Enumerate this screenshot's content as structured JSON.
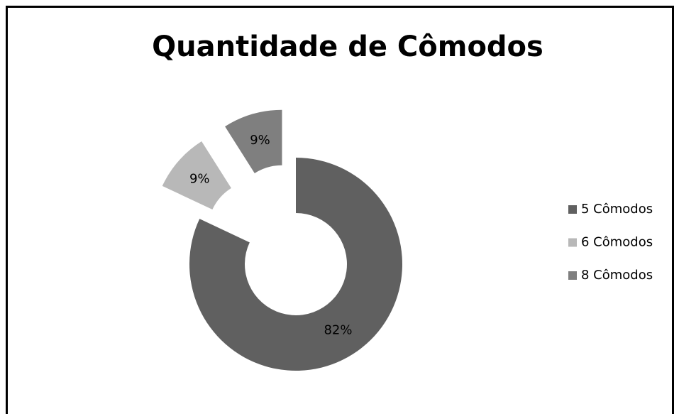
{
  "chart_data": {
    "type": "pie",
    "title": "Quantidade de Cômodos",
    "categories": [
      "5 Cômodos",
      "6 Cômodos",
      "8 Cômodos"
    ],
    "values": [
      82,
      9,
      9
    ],
    "value_labels": [
      "82%",
      "9%",
      "9%"
    ],
    "colors": [
      "#606060",
      "#b8b8b8",
      "#7f7f7f"
    ],
    "donut": true,
    "exploded": [
      false,
      true,
      true
    ],
    "legend": "right"
  }
}
